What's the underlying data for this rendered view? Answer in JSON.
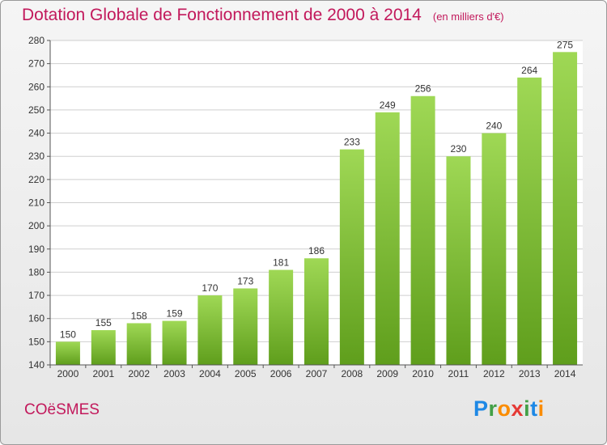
{
  "title": "Dotation Globale de Fonctionnement de 2000 à 2014",
  "unit": "(en milliers d'€)",
  "city": "COëSMES",
  "logo": {
    "letters": [
      "P",
      "r",
      "o",
      "x",
      "i",
      "t",
      "i"
    ],
    "colors": [
      "#1e88e5",
      "#43a047",
      "#fb8c00",
      "#e53935",
      "#43a047",
      "#1e88e5",
      "#fb8c00"
    ]
  },
  "colors": {
    "bar_top": "#9fd855",
    "bar_bottom": "#5f9e1c",
    "accent": "#c2185b"
  },
  "chart_data": {
    "type": "bar",
    "categories": [
      "2000",
      "2001",
      "2002",
      "2003",
      "2004",
      "2005",
      "2006",
      "2007",
      "2008",
      "2009",
      "2010",
      "2011",
      "2012",
      "2013",
      "2014"
    ],
    "values": [
      150,
      155,
      158,
      159,
      170,
      173,
      181,
      186,
      233,
      249,
      256,
      230,
      240,
      264,
      275
    ],
    "ylim": [
      140,
      280
    ],
    "yticks": [
      140,
      150,
      160,
      170,
      180,
      190,
      200,
      210,
      220,
      230,
      240,
      250,
      260,
      270,
      280
    ],
    "grid": true,
    "title": "Dotation Globale de Fonctionnement de 2000 à 2014",
    "xlabel": "",
    "ylabel": ""
  }
}
